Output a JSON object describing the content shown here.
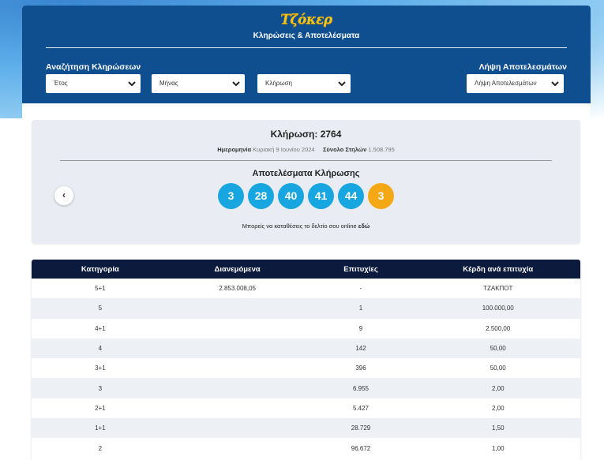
{
  "header": {
    "logo": "Τζόκερ",
    "subtitle": "Κληρώσεις & Αποτελέσματα",
    "search_label": "Αναζήτηση Κληρώσεων",
    "results_label": "Λήψη Αποτελεσμάτων",
    "selects": {
      "year": "Έτος",
      "month": "Μήνας",
      "draw": "Κλήρωση",
      "results": "Λήψη Αποτελεσμάτων"
    }
  },
  "draw": {
    "title": "Κλήρωση: 2764",
    "date_label": "Ημερομηνία",
    "date_value": "Κυριακή 9 Ιουνίου 2024",
    "columns_label": "Σύνολο Στηλών",
    "columns_value": "1.508.795",
    "results_title": "Αποτελέσματα Κλήρωσης",
    "numbers": [
      "3",
      "28",
      "40",
      "41",
      "44"
    ],
    "joker": "3",
    "prev_arrow": "‹",
    "online_text": "Μπορείς να καταθέσεις το δελτίο σου online",
    "online_link": "εδώ",
    "colors": {
      "ball": "#17a6e0",
      "joker": "#f4a816"
    }
  },
  "table": {
    "headers": [
      "Κατηγορία",
      "Διανεμόμενα",
      "Επιτυχίες",
      "Κέρδη ανά επιτυχία"
    ],
    "rows": [
      [
        "5+1",
        "2.853.008,05",
        "-",
        "ΤΖΑΚΠΟΤ"
      ],
      [
        "5",
        "",
        "1",
        "100.000,00"
      ],
      [
        "4+1",
        "",
        "9",
        "2.500,00"
      ],
      [
        "4",
        "",
        "142",
        "50,00"
      ],
      [
        "3+1",
        "",
        "396",
        "50,00"
      ],
      [
        "3",
        "",
        "6.955",
        "2,00"
      ],
      [
        "2+1",
        "",
        "5.427",
        "2,00"
      ],
      [
        "1+1",
        "",
        "28.729",
        "1,50"
      ],
      [
        "2",
        "",
        "96.672",
        "1,00"
      ]
    ]
  }
}
